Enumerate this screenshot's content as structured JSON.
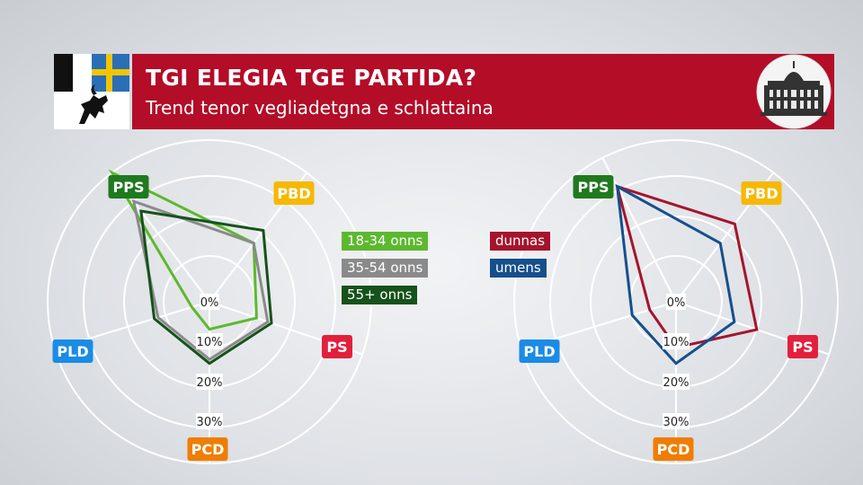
{
  "header": {
    "title": "TGI ELEGIA TGE PARTIDA?",
    "subtitle": "Trend tenor vegliadetgna e schlattaina"
  },
  "icons": {
    "left": "graubuenden-crest-icon",
    "right": "federal-palace-icon"
  },
  "colors": {
    "header_red": "#b30d28",
    "PPS": "#1f7a1f",
    "PBD": "#f6b800",
    "PS": "#e3203c",
    "PCD": "#ef7d00",
    "PLD": "#1a8ce6"
  },
  "chart_data": [
    {
      "type": "radar",
      "axes": [
        "PPS",
        "PBD",
        "PS",
        "PCD",
        "PLD"
      ],
      "ticks": [
        "0%",
        "10%",
        "20%",
        "30%"
      ],
      "rlim": [
        0,
        40
      ],
      "series": [
        {
          "name": "18-34 onns",
          "color": "#5db82e",
          "values": [
            40,
            17,
            11,
            6,
            4
          ]
        },
        {
          "name": "35-54 onns",
          "color": "#8a8a8a",
          "values": [
            30,
            17,
            14,
            13,
            12
          ]
        },
        {
          "name": "55+ onns",
          "color": "#16521a",
          "values": [
            27,
            21,
            15,
            14,
            13
          ]
        }
      ]
    },
    {
      "type": "radar",
      "axes": [
        "PPS",
        "PBD",
        "PS",
        "PCD",
        "PLD"
      ],
      "ticks": [
        "0%",
        "10%",
        "20%",
        "30%"
      ],
      "rlim": [
        0,
        40
      ],
      "series": [
        {
          "name": "dunnas",
          "color": "#a5142d",
          "values": [
            31,
            23,
            20,
            10,
            6
          ]
        },
        {
          "name": "umens",
          "color": "#154f8c",
          "values": [
            31,
            17,
            14,
            14,
            10
          ]
        }
      ]
    }
  ]
}
